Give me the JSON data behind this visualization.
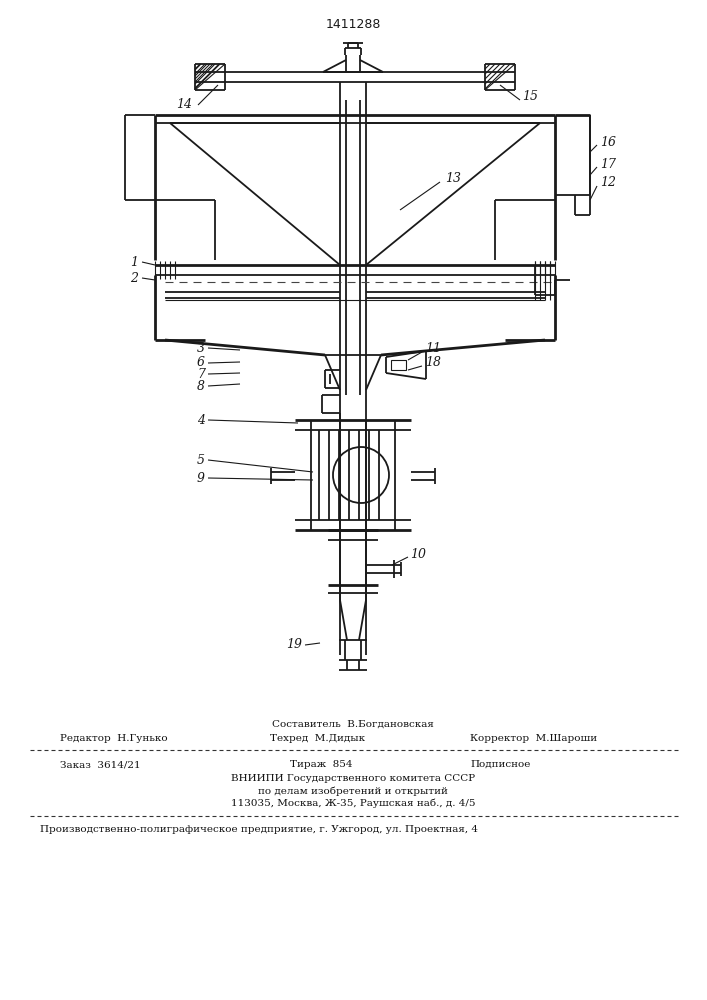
{
  "patent_number": "1411288",
  "bg_color": "#ffffff",
  "line_color": "#1a1a1a",
  "composer_line": "Составитель  В.Богдановская",
  "editor_label": "Редактор  Н.Гунько",
  "tehred_label": "Техред  М.Дидык",
  "korrektor_label": "Корректор  М.Шароши",
  "order_label": "Заказ  3614/21",
  "tirazh_label": "Тираж  854",
  "podpisnoe_label": "Подписное",
  "vniiipi_lines": [
    "ВНИИПИ Государственного комитета СССР",
    "по делам изобретений и открытий",
    "113035, Москва, Ж-35, Раушская наб., д. 4/5"
  ],
  "production_line": "Производственно-полиграфическое предприятие, г. Ужгород, ул. Проектная, 4"
}
